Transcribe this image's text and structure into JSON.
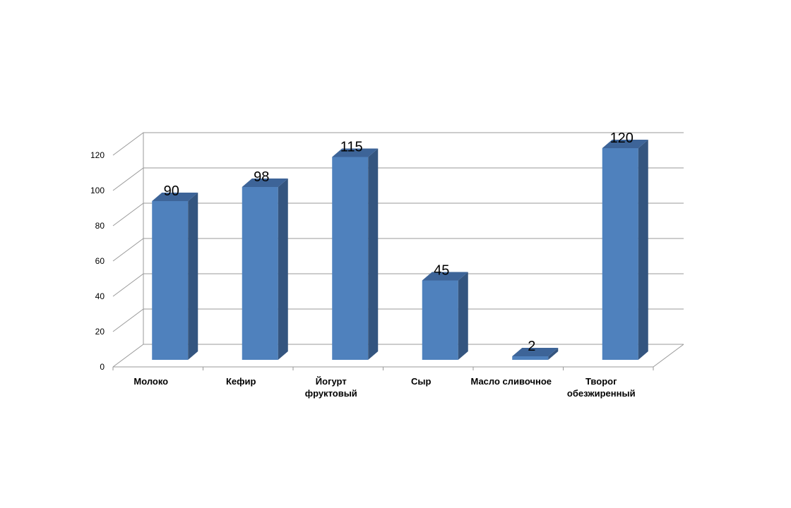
{
  "chart_data": {
    "type": "bar",
    "style": "3d-column",
    "categories": [
      [
        "Молоко"
      ],
      [
        "Кефир"
      ],
      [
        "Йогурт",
        "фруктовый"
      ],
      [
        "Сыр"
      ],
      [
        "Масло сливочное"
      ],
      [
        "Творог",
        "обезжиренный"
      ]
    ],
    "values": [
      90,
      98,
      115,
      45,
      2,
      120
    ],
    "data_labels": [
      "90",
      "98",
      "115",
      "45",
      "2",
      "120"
    ],
    "y_ticks": [
      "0",
      "20",
      "40",
      "60",
      "80",
      "100",
      "120"
    ],
    "ylim": [
      0,
      120
    ],
    "grid": true,
    "legend": "none",
    "colors": {
      "bar_front": "#4f81bd",
      "bar_side": "#34557f",
      "bar_top": "#3d6498",
      "grid": "#9a9a9a"
    }
  }
}
